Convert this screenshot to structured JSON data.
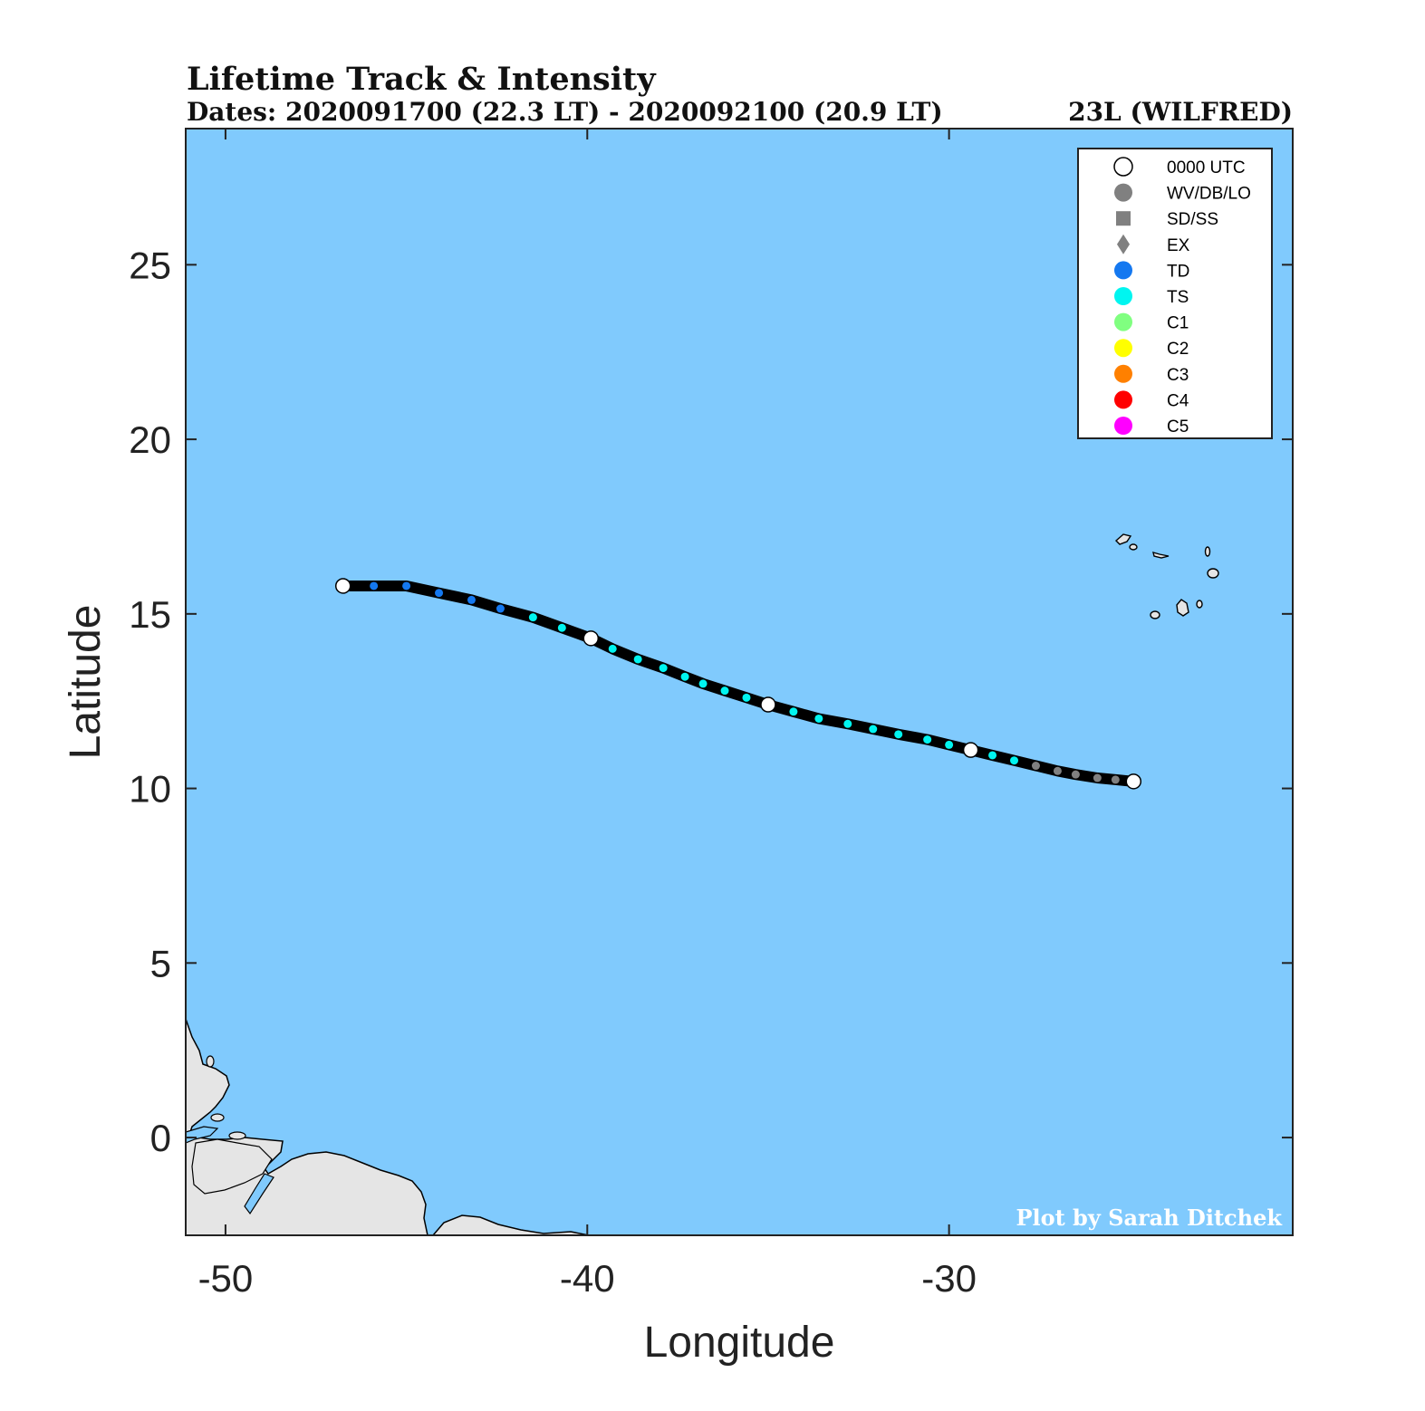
{
  "title": "Lifetime Track & Intensity",
  "subtitle": "Dates: 2020091700 (22.3 LT) - 2020092100 (20.9 LT)",
  "storm_id": "23L (WILFRED)",
  "credit": "Plot by Sarah Ditchek",
  "colors": {
    "ocean": "#80CAFD",
    "land": "#E5E5E5",
    "track": "#000000",
    "TD": "#1478F0",
    "TS": "#00F5F0",
    "WV": "#808080",
    "C1": "#80FF80",
    "C2": "#FFFF00",
    "C3": "#FF8000",
    "C4": "#FF0000",
    "C5": "#FF00FF"
  },
  "chart_data": {
    "type": "map-track",
    "xlabel": "Longitude",
    "ylabel": "Latitude",
    "xlim": [
      -51.1,
      -20.5
    ],
    "ylim": [
      -2.8,
      28.9
    ],
    "xticks": [
      -50,
      -40,
      -30
    ],
    "yticks": [
      0,
      5,
      10,
      15,
      20,
      25
    ],
    "legend": [
      {
        "label": "0000 UTC",
        "marker": "circle",
        "color": "#FFFFFF"
      },
      {
        "label": "WV/DB/LO",
        "marker": "circle",
        "color": "#808080"
      },
      {
        "label": "SD/SS",
        "marker": "square",
        "color": "#808080"
      },
      {
        "label": "EX",
        "marker": "diamond",
        "color": "#808080"
      },
      {
        "label": "TD",
        "marker": "circle",
        "color": "#1478F0"
      },
      {
        "label": "TS",
        "marker": "circle",
        "color": "#00F5F0"
      },
      {
        "label": "C1",
        "marker": "circle",
        "color": "#80FF80"
      },
      {
        "label": "C2",
        "marker": "circle",
        "color": "#FFFF00"
      },
      {
        "label": "C3",
        "marker": "circle",
        "color": "#FF8000"
      },
      {
        "label": "C4",
        "marker": "circle",
        "color": "#FF0000"
      },
      {
        "label": "C5",
        "marker": "circle",
        "color": "#FF00FF"
      }
    ],
    "track": [
      {
        "lon": -24.9,
        "lat": 10.2,
        "cat": "WV",
        "utc00": true
      },
      {
        "lon": -25.4,
        "lat": 10.25,
        "cat": "WV"
      },
      {
        "lon": -25.9,
        "lat": 10.3,
        "cat": "WV"
      },
      {
        "lon": -26.5,
        "lat": 10.4,
        "cat": "WV"
      },
      {
        "lon": -27.0,
        "lat": 10.5,
        "cat": "WV"
      },
      {
        "lon": -27.6,
        "lat": 10.65,
        "cat": "WV"
      },
      {
        "lon": -28.2,
        "lat": 10.8,
        "cat": "TS"
      },
      {
        "lon": -28.8,
        "lat": 10.95,
        "cat": "TS"
      },
      {
        "lon": -29.4,
        "lat": 11.1,
        "cat": "TS",
        "utc00": true
      },
      {
        "lon": -30.0,
        "lat": 11.25,
        "cat": "TS"
      },
      {
        "lon": -30.6,
        "lat": 11.4,
        "cat": "TS"
      },
      {
        "lon": -31.4,
        "lat": 11.55,
        "cat": "TS"
      },
      {
        "lon": -32.1,
        "lat": 11.7,
        "cat": "TS"
      },
      {
        "lon": -32.8,
        "lat": 11.85,
        "cat": "TS"
      },
      {
        "lon": -33.6,
        "lat": 12.0,
        "cat": "TS"
      },
      {
        "lon": -34.3,
        "lat": 12.2,
        "cat": "TS"
      },
      {
        "lon": -35.0,
        "lat": 12.4,
        "cat": "TS",
        "utc00": true
      },
      {
        "lon": -35.6,
        "lat": 12.6,
        "cat": "TS"
      },
      {
        "lon": -36.2,
        "lat": 12.8,
        "cat": "TS"
      },
      {
        "lon": -36.8,
        "lat": 13.0,
        "cat": "TS"
      },
      {
        "lon": -37.3,
        "lat": 13.2,
        "cat": "TS"
      },
      {
        "lon": -37.9,
        "lat": 13.45,
        "cat": "TS"
      },
      {
        "lon": -38.6,
        "lat": 13.7,
        "cat": "TS"
      },
      {
        "lon": -39.3,
        "lat": 14.0,
        "cat": "TS"
      },
      {
        "lon": -39.9,
        "lat": 14.3,
        "cat": "TS",
        "utc00": true
      },
      {
        "lon": -40.7,
        "lat": 14.6,
        "cat": "TS"
      },
      {
        "lon": -41.5,
        "lat": 14.9,
        "cat": "TS"
      },
      {
        "lon": -42.4,
        "lat": 15.15,
        "cat": "TD"
      },
      {
        "lon": -43.2,
        "lat": 15.4,
        "cat": "TD"
      },
      {
        "lon": -44.1,
        "lat": 15.6,
        "cat": "TD"
      },
      {
        "lon": -45.0,
        "lat": 15.8,
        "cat": "TD"
      },
      {
        "lon": -45.9,
        "lat": 15.8,
        "cat": "TD"
      },
      {
        "lon": -46.75,
        "lat": 15.8,
        "cat": "TD",
        "utc00": true
      }
    ]
  }
}
